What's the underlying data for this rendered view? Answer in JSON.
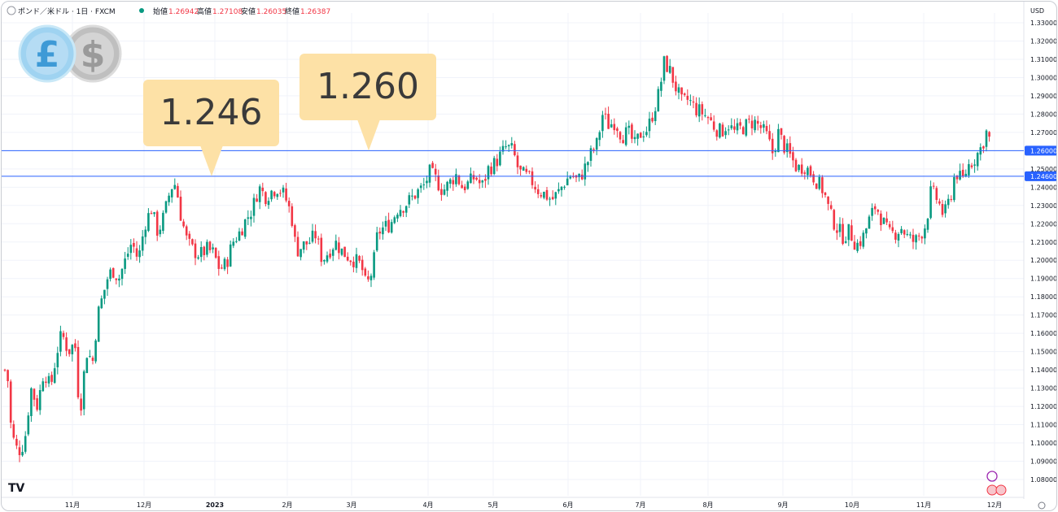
{
  "header": {
    "symbol": "ポンド／米ドル · 1日 · FXCM",
    "open_label": "始値",
    "open": "1.26942",
    "high_label": "高値",
    "high": "1.27108",
    "low_label": "安値",
    "low": "1.26035",
    "close_label": "終値",
    "close": "1.26387",
    "currency": "USD"
  },
  "icons": {
    "left": "pound-coin-icon",
    "right": "dollar-coin-icon"
  },
  "logo": "TV",
  "callouts": [
    {
      "text": "1.246",
      "level": 1.246
    },
    {
      "text": "1.260",
      "level": 1.26
    }
  ],
  "colors": {
    "up": "#089981",
    "down": "#f23645",
    "line": "#2962ff",
    "callout": "#fde1a6"
  },
  "chart_data": {
    "type": "candlestick",
    "ylim": [
      1.075,
      1.335
    ],
    "yticks": [
      "1.33000",
      "1.32000",
      "1.31000",
      "1.30000",
      "1.29000",
      "1.28000",
      "1.27000",
      "1.26000",
      "1.25000",
      "1.24000",
      "1.23000",
      "1.22000",
      "1.21000",
      "1.20000",
      "1.19000",
      "1.18000",
      "1.17000",
      "1.16000",
      "1.15000",
      "1.14000",
      "1.13000",
      "1.12000",
      "1.11000",
      "1.10000",
      "1.09000",
      "1.08000"
    ],
    "xticks": [
      "11月",
      "12月",
      "2023",
      "2月",
      "3月",
      "4月",
      "5月",
      "6月",
      "7月",
      "8月",
      "9月",
      "10月",
      "11月",
      "12月"
    ],
    "horizontal_lines": [
      {
        "value": 1.26,
        "label": "1.26000"
      },
      {
        "value": 1.246,
        "label": "1.24600"
      }
    ],
    "path": [
      [
        0,
        1.13
      ],
      [
        6,
        1.145
      ],
      [
        12,
        1.105
      ],
      [
        20,
        1.095
      ],
      [
        28,
        1.1
      ],
      [
        36,
        1.13
      ],
      [
        44,
        1.12
      ],
      [
        52,
        1.14
      ],
      [
        60,
        1.13
      ],
      [
        68,
        1.15
      ],
      [
        74,
        1.16
      ],
      [
        82,
        1.15
      ],
      [
        90,
        1.155
      ],
      [
        96,
        1.115
      ],
      [
        104,
        1.15
      ],
      [
        112,
        1.145
      ],
      [
        118,
        1.17
      ],
      [
        124,
        1.18
      ],
      [
        130,
        1.19
      ],
      [
        136,
        1.195
      ],
      [
        144,
        1.19
      ],
      [
        152,
        1.2
      ],
      [
        160,
        1.21
      ],
      [
        168,
        1.2
      ],
      [
        176,
        1.22
      ],
      [
        184,
        1.228
      ],
      [
        192,
        1.215
      ],
      [
        200,
        1.225
      ],
      [
        208,
        1.24
      ],
      [
        214,
        1.242
      ],
      [
        220,
        1.225
      ],
      [
        228,
        1.21
      ],
      [
        236,
        1.205
      ],
      [
        244,
        1.203
      ],
      [
        252,
        1.206
      ],
      [
        260,
        1.204
      ],
      [
        268,
        1.195
      ],
      [
        276,
        1.198
      ],
      [
        284,
        1.21
      ],
      [
        292,
        1.215
      ],
      [
        300,
        1.222
      ],
      [
        308,
        1.228
      ],
      [
        316,
        1.24
      ],
      [
        324,
        1.235
      ],
      [
        332,
        1.238
      ],
      [
        340,
        1.24
      ],
      [
        348,
        1.235
      ],
      [
        356,
        1.225
      ],
      [
        362,
        1.205
      ],
      [
        370,
        1.208
      ],
      [
        378,
        1.21
      ],
      [
        386,
        1.214
      ],
      [
        394,
        1.2
      ],
      [
        402,
        1.205
      ],
      [
        410,
        1.21
      ],
      [
        418,
        1.205
      ],
      [
        426,
        1.202
      ],
      [
        434,
        1.2
      ],
      [
        442,
        1.197
      ],
      [
        448,
        1.185
      ],
      [
        456,
        1.195
      ],
      [
        462,
        1.215
      ],
      [
        470,
        1.218
      ],
      [
        478,
        1.22
      ],
      [
        486,
        1.228
      ],
      [
        494,
        1.23
      ],
      [
        502,
        1.233
      ],
      [
        510,
        1.237
      ],
      [
        518,
        1.24
      ],
      [
        526,
        1.248
      ],
      [
        534,
        1.244
      ],
      [
        542,
        1.238
      ],
      [
        550,
        1.242
      ],
      [
        558,
        1.247
      ],
      [
        566,
        1.24
      ],
      [
        574,
        1.242
      ],
      [
        582,
        1.246
      ],
      [
        590,
        1.24
      ],
      [
        598,
        1.25
      ],
      [
        606,
        1.253
      ],
      [
        614,
        1.258
      ],
      [
        620,
        1.262
      ],
      [
        628,
        1.26
      ],
      [
        636,
        1.248
      ],
      [
        644,
        1.246
      ],
      [
        652,
        1.243
      ],
      [
        660,
        1.238
      ],
      [
        668,
        1.236
      ],
      [
        676,
        1.233
      ],
      [
        684,
        1.237
      ],
      [
        692,
        1.243
      ],
      [
        700,
        1.247
      ],
      [
        708,
        1.243
      ],
      [
        716,
        1.25
      ],
      [
        724,
        1.258
      ],
      [
        732,
        1.264
      ],
      [
        738,
        1.28
      ],
      [
        746,
        1.274
      ],
      [
        754,
        1.276
      ],
      [
        762,
        1.268
      ],
      [
        770,
        1.27
      ],
      [
        778,
        1.263
      ],
      [
        786,
        1.27
      ],
      [
        794,
        1.272
      ],
      [
        802,
        1.283
      ],
      [
        808,
        1.292
      ],
      [
        814,
        1.308
      ],
      [
        820,
        1.305
      ],
      [
        828,
        1.295
      ],
      [
        836,
        1.286
      ],
      [
        844,
        1.288
      ],
      [
        852,
        1.283
      ],
      [
        860,
        1.281
      ],
      [
        868,
        1.278
      ],
      [
        876,
        1.273
      ],
      [
        884,
        1.27
      ],
      [
        892,
        1.275
      ],
      [
        900,
        1.27
      ],
      [
        908,
        1.272
      ],
      [
        916,
        1.274
      ],
      [
        924,
        1.276
      ],
      [
        932,
        1.273
      ],
      [
        940,
        1.268
      ],
      [
        948,
        1.258
      ],
      [
        954,
        1.27
      ],
      [
        962,
        1.262
      ],
      [
        970,
        1.256
      ],
      [
        978,
        1.25
      ],
      [
        986,
        1.252
      ],
      [
        994,
        1.248
      ],
      [
        1002,
        1.243
      ],
      [
        1010,
        1.238
      ],
      [
        1018,
        1.225
      ],
      [
        1026,
        1.218
      ],
      [
        1034,
        1.213
      ],
      [
        1042,
        1.216
      ],
      [
        1050,
        1.208
      ],
      [
        1058,
        1.212
      ],
      [
        1066,
        1.222
      ],
      [
        1074,
        1.23
      ],
      [
        1082,
        1.222
      ],
      [
        1090,
        1.214
      ],
      [
        1098,
        1.215
      ],
      [
        1106,
        1.218
      ],
      [
        1114,
        1.212
      ],
      [
        1122,
        1.21
      ],
      [
        1130,
        1.215
      ],
      [
        1136,
        1.22
      ],
      [
        1142,
        1.238
      ],
      [
        1150,
        1.233
      ],
      [
        1158,
        1.224
      ],
      [
        1166,
        1.235
      ],
      [
        1172,
        1.249
      ],
      [
        1180,
        1.243
      ],
      [
        1188,
        1.252
      ],
      [
        1196,
        1.256
      ],
      [
        1204,
        1.262
      ],
      [
        1210,
        1.27
      ],
      [
        1216,
        1.264
      ]
    ]
  }
}
